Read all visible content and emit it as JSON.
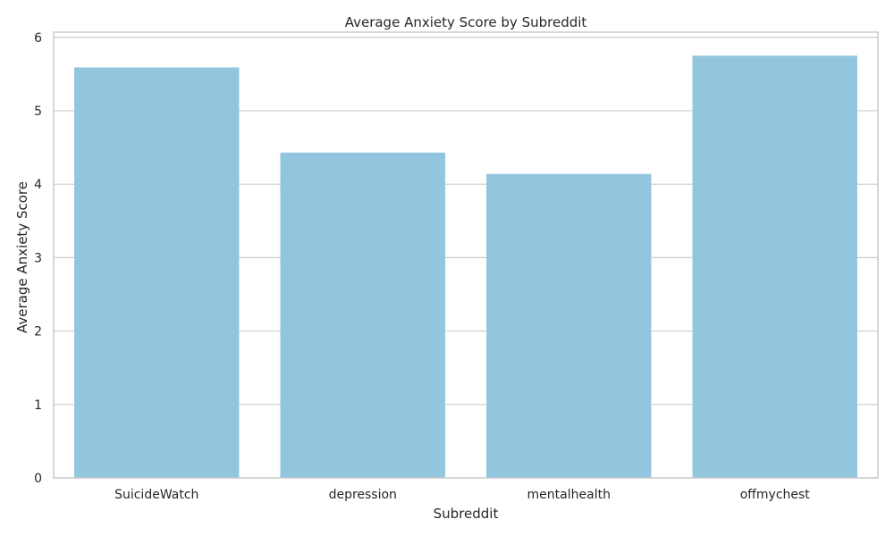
{
  "chart_data": {
    "type": "bar",
    "title": "Average Anxiety Score by Subreddit",
    "xlabel": "Subreddit",
    "ylabel": "Average Anxiety Score",
    "categories": [
      "SuicideWatch",
      "depression",
      "mentalhealth",
      "offmychest"
    ],
    "values": [
      5.59,
      4.43,
      4.14,
      5.75
    ],
    "ylim": [
      0,
      6.07
    ],
    "yticks": [
      0,
      1,
      2,
      3,
      4,
      5,
      6
    ],
    "grid": "horizontal",
    "legend": "none",
    "bar_color": "#92C6DF"
  }
}
